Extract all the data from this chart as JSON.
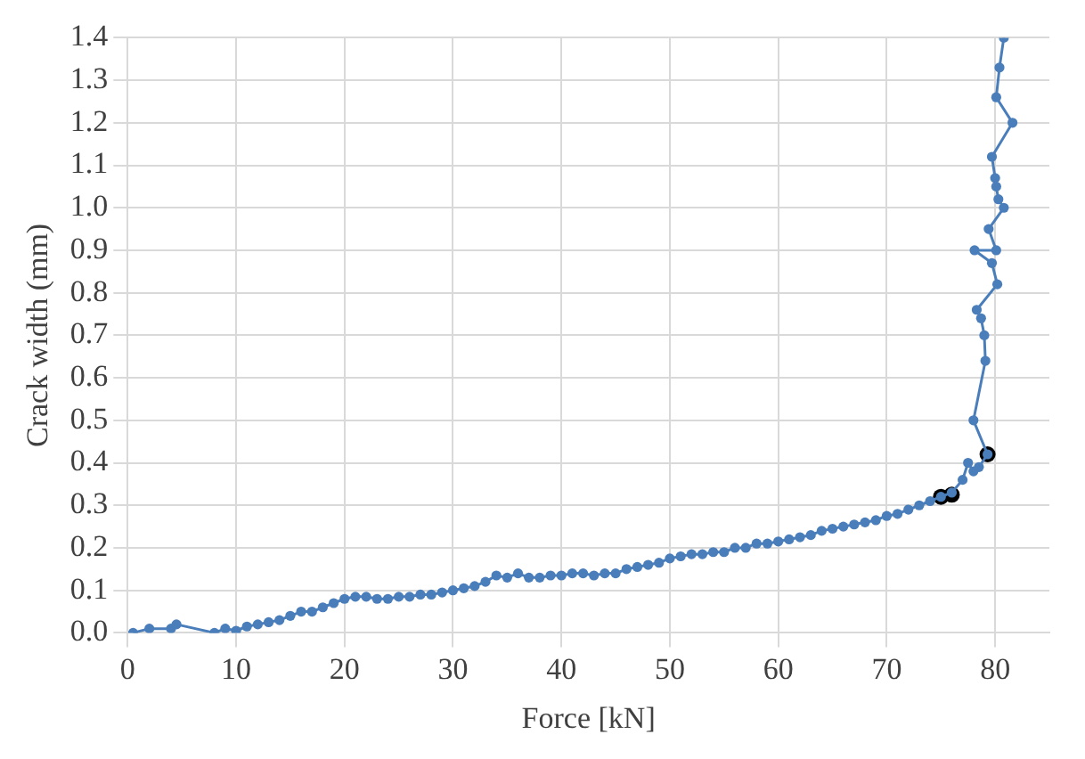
{
  "chart_data": {
    "type": "line",
    "xlabel": "Force [kN]",
    "ylabel": "Crack width (mm)",
    "xlim": [
      0,
      85
    ],
    "xticks": [
      0,
      10,
      20,
      30,
      40,
      50,
      60,
      70,
      80
    ],
    "ylim": [
      0,
      1.4
    ],
    "yticks": [
      {
        "value": 0,
        "label": "0.0"
      },
      {
        "value": 0.1,
        "label": "0.1"
      },
      {
        "value": 0.2,
        "label": "0.2"
      },
      {
        "value": 0.3,
        "label": "0.3"
      },
      {
        "value": 0.4,
        "label": "0.4"
      },
      {
        "value": 0.5,
        "label": "0.5"
      },
      {
        "value": 0.6,
        "label": "0.6"
      },
      {
        "value": 0.7,
        "label": "0.7"
      },
      {
        "value": 0.8,
        "label": "0.8"
      },
      {
        "value": 0.9,
        "label": "0.9"
      },
      {
        "value": 1,
        "label": "1.0"
      },
      {
        "value": 1.1,
        "label": "1.1"
      },
      {
        "value": 1.2,
        "label": "1.2"
      },
      {
        "value": 1.3,
        "label": "1.3"
      },
      {
        "value": 1.4,
        "label": "1.4"
      }
    ],
    "grid": true,
    "legend": false,
    "marker": "circle",
    "line_style": "solid",
    "series": [
      {
        "color": "#4a7ebb",
        "x": [
          0.5,
          2,
          4,
          4.5,
          8,
          9,
          10,
          11,
          12,
          13,
          14,
          15,
          16,
          17,
          18,
          19,
          20,
          21,
          22,
          23,
          24,
          25,
          26,
          27,
          28,
          29,
          30,
          31,
          32,
          33,
          34,
          35,
          36,
          37,
          38,
          39,
          40,
          41,
          42,
          43,
          44,
          45,
          46,
          47,
          48,
          49,
          50,
          51,
          52,
          53,
          54,
          55,
          56,
          57,
          58,
          59,
          60,
          61,
          62,
          63,
          64,
          65,
          66,
          67,
          68,
          69,
          70,
          71,
          72,
          73,
          74,
          75,
          76,
          77,
          77.5,
          78,
          78.5,
          79.3,
          78,
          79.1,
          79,
          78.7,
          78.3,
          80.2,
          79.7,
          78.1,
          80.1,
          79.4,
          80.8,
          80.3,
          80.1,
          80,
          79.7,
          81.6,
          80.1,
          80.4,
          80.8
        ],
        "values": [
          0,
          0.01,
          0.01,
          0.02,
          0,
          0.01,
          0.005,
          0.015,
          0.02,
          0.025,
          0.03,
          0.04,
          0.05,
          0.05,
          0.06,
          0.07,
          0.08,
          0.085,
          0.085,
          0.08,
          0.08,
          0.085,
          0.085,
          0.09,
          0.09,
          0.095,
          0.1,
          0.105,
          0.11,
          0.12,
          0.135,
          0.13,
          0.14,
          0.13,
          0.13,
          0.135,
          0.135,
          0.14,
          0.14,
          0.135,
          0.14,
          0.14,
          0.15,
          0.155,
          0.16,
          0.165,
          0.175,
          0.18,
          0.185,
          0.185,
          0.19,
          0.19,
          0.2,
          0.2,
          0.21,
          0.21,
          0.215,
          0.22,
          0.225,
          0.23,
          0.24,
          0.245,
          0.25,
          0.255,
          0.26,
          0.265,
          0.275,
          0.28,
          0.29,
          0.3,
          0.31,
          0.32,
          0.33,
          0.36,
          0.4,
          0.38,
          0.39,
          0.42,
          0.5,
          0.64,
          0.7,
          0.74,
          0.76,
          0.82,
          0.87,
          0.9,
          0.9,
          0.95,
          1,
          1.02,
          1.05,
          1.07,
          1.12,
          1.2,
          1.26,
          1.33,
          1.4
        ]
      },
      {
        "type": "scatter",
        "color": "#000000",
        "x": [
          75,
          76,
          79.3
        ],
        "values": [
          0.32,
          0.325,
          0.42
        ]
      }
    ]
  }
}
